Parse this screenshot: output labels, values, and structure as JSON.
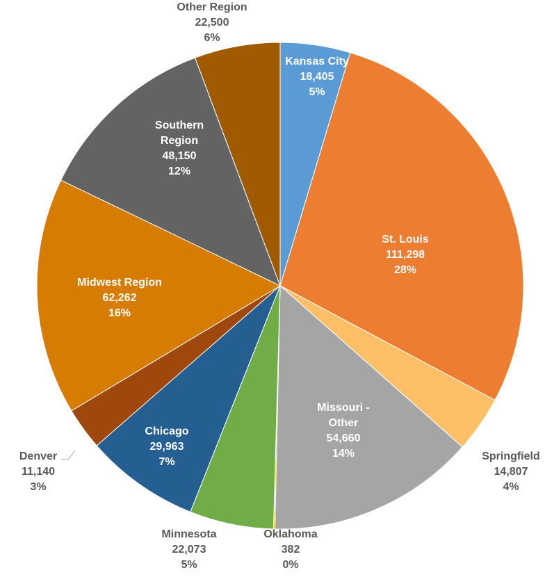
{
  "chart_data": {
    "type": "pie",
    "categories": [
      "Kansas City",
      "St. Louis",
      "Springfield",
      "Missouri - Other",
      "Oklahoma",
      "Minnesota",
      "Chicago",
      "Denver",
      "Midwest Region",
      "Southern Region",
      "Other Region"
    ],
    "values": [
      18405,
      111298,
      14807,
      54660,
      382,
      22073,
      29963,
      11140,
      62262,
      48150,
      22500
    ],
    "value_labels": [
      "18,405",
      "111,298",
      "14,807",
      "54,660",
      "382",
      "22,073",
      "29,963",
      "11,140",
      "62,262",
      "48,150",
      "22,500"
    ],
    "percent_labels": [
      "5%",
      "28%",
      "4%",
      "14%",
      "0%",
      "5%",
      "7%",
      "3%",
      "16%",
      "12%",
      "6%"
    ],
    "colors": [
      "#5b9bd5",
      "#ed7d31",
      "#ffbf66",
      "#a5a5a5",
      "#ffc000",
      "#70ad47",
      "#255e91",
      "#9e480e",
      "#d67c00",
      "#636363",
      "#a05a00"
    ]
  }
}
